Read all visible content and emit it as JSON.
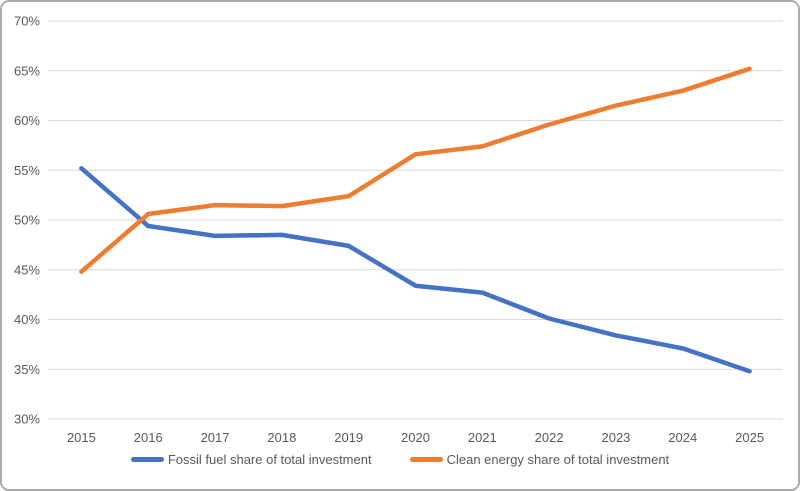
{
  "chart_data": {
    "type": "line",
    "title": "",
    "categories": [
      "2015",
      "2016",
      "2017",
      "2018",
      "2019",
      "2020",
      "2021",
      "2022",
      "2023",
      "2024",
      "2025"
    ],
    "series": [
      {
        "name": "Fossil fuel share of total investment",
        "color": "#4472C4",
        "values": [
          55.2,
          49.4,
          48.4,
          48.5,
          47.4,
          43.4,
          42.7,
          40.1,
          38.4,
          37.1,
          34.8
        ]
      },
      {
        "name": "Clean energy share of total investment",
        "color": "#ED7D31",
        "values": [
          44.8,
          50.6,
          51.5,
          51.4,
          52.4,
          56.6,
          57.4,
          59.6,
          61.5,
          63.0,
          65.2
        ]
      }
    ],
    "xlabel": "",
    "ylabel": "",
    "ylim": [
      30,
      70
    ],
    "ytick_step": 5,
    "ytick_labels": [
      "30%",
      "35%",
      "40%",
      "45%",
      "50%",
      "55%",
      "60%",
      "65%",
      "70%"
    ],
    "grid": true,
    "legend_position": "bottom"
  },
  "colors": {
    "gridline": "#D9D9D9",
    "axis_text": "#595959",
    "frame_border": "#ABABAB",
    "background": "#FFFFFF"
  }
}
